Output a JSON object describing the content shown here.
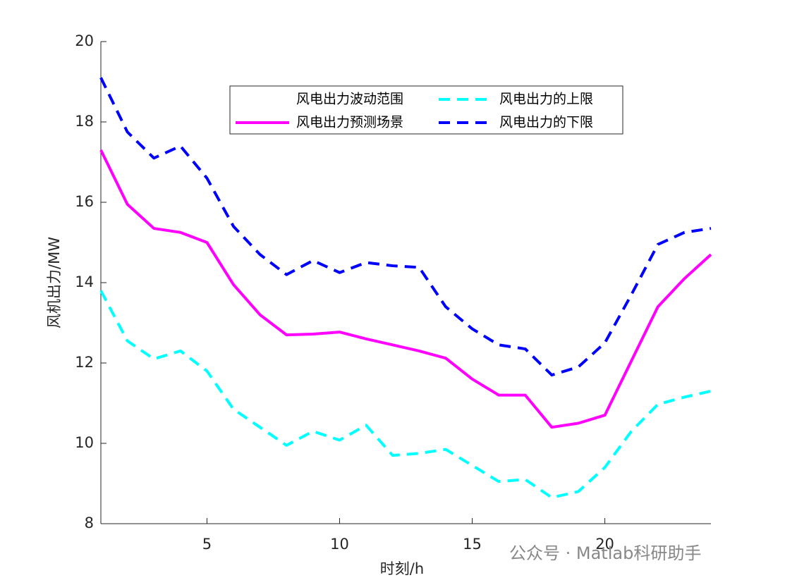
{
  "chart_data": {
    "type": "line",
    "xlabel": "时刻/h",
    "ylabel": "风机出力/MW",
    "x": [
      1,
      2,
      3,
      4,
      5,
      6,
      7,
      8,
      9,
      10,
      11,
      12,
      13,
      14,
      15,
      16,
      17,
      18,
      19,
      20,
      21,
      22,
      23,
      24
    ],
    "range_label": "风电出力波动范围",
    "series": [
      {
        "name": "风电出力预测场景",
        "color": "#ff00ff",
        "dash": false,
        "values": [
          17.3,
          15.95,
          15.35,
          15.25,
          15.0,
          13.95,
          13.2,
          12.7,
          12.72,
          12.77,
          12.6,
          12.45,
          12.3,
          12.12,
          11.6,
          11.2,
          11.2,
          10.4,
          10.5,
          10.7,
          12.05,
          13.4,
          14.1,
          14.7
        ]
      },
      {
        "name": "风电出力的上限",
        "color": "#00ffff",
        "dash": true,
        "values": [
          13.8,
          12.55,
          12.1,
          12.3,
          11.8,
          10.85,
          10.4,
          9.95,
          10.3,
          10.08,
          10.45,
          9.7,
          9.75,
          9.85,
          9.45,
          9.05,
          9.1,
          8.65,
          8.8,
          9.4,
          10.3,
          10.97,
          11.15,
          11.3
        ]
      },
      {
        "name": "风电出力的下限",
        "color": "#0000ff",
        "dash": true,
        "values": [
          19.1,
          17.75,
          17.1,
          17.4,
          16.6,
          15.4,
          14.7,
          14.2,
          14.55,
          14.25,
          14.5,
          14.42,
          14.38,
          13.4,
          12.85,
          12.45,
          12.35,
          11.7,
          11.9,
          12.5,
          13.7,
          14.95,
          15.25,
          15.35
        ]
      }
    ],
    "xlim": [
      1,
      24
    ],
    "xticks": [
      5,
      10,
      15,
      20
    ],
    "ylim": [
      8,
      20
    ],
    "yticks": [
      8,
      10,
      12,
      14,
      16,
      18,
      20
    ],
    "watermark": "公众号 · Matlab科研助手"
  }
}
